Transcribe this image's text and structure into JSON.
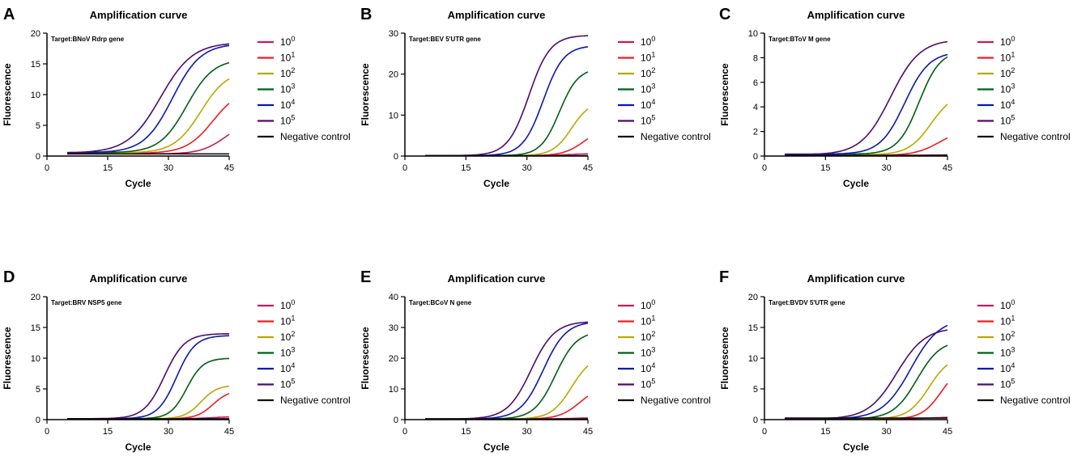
{
  "figure": {
    "panels": [
      "A",
      "B",
      "C",
      "D",
      "E",
      "F"
    ]
  },
  "legend_labels": [
    "10^0",
    "10^1",
    "10^2",
    "10^3",
    "10^4",
    "10^5",
    "Negative control"
  ],
  "chart_data": [
    {
      "panel": "A",
      "type": "line",
      "title": "Amplification curve",
      "target": "Target:BNoV Rdrp gene",
      "xlabel": "Cycle",
      "ylabel": "Fluorescence",
      "xlim": [
        0,
        45
      ],
      "ylim": [
        0,
        20
      ],
      "xticks": [
        0,
        15,
        30,
        45
      ],
      "yticks": [
        0,
        5,
        10,
        15,
        20
      ],
      "series": [
        {
          "name": "10^0",
          "color": "#c8195e",
          "plateau": 5.8,
          "midpoint": 44,
          "slope": 3.0,
          "baseline": 0.35
        },
        {
          "name": "10^1",
          "color": "#ee1c24",
          "plateau": 11.0,
          "midpoint": 41,
          "slope": 3.3,
          "baseline": 0.45
        },
        {
          "name": "10^2",
          "color": "#b8a800",
          "plateau": 14.0,
          "midpoint": 38,
          "slope": 3.3,
          "baseline": 0.5
        },
        {
          "name": "10^3",
          "color": "#005e14",
          "plateau": 15.8,
          "midpoint": 34.5,
          "slope": 3.3,
          "baseline": 0.55
        },
        {
          "name": "10^4",
          "color": "#0b17b4",
          "plateau": 18.3,
          "midpoint": 31,
          "slope": 3.5,
          "baseline": 0.55
        },
        {
          "name": "10^5",
          "color": "#4e0a6b",
          "plateau": 18.5,
          "midpoint": 28,
          "slope": 4.0,
          "baseline": 0.5
        },
        {
          "name": "Negative control",
          "color": "#111111",
          "plateau": 0,
          "midpoint": 30,
          "slope": 3,
          "baseline": 0.35
        }
      ]
    },
    {
      "panel": "B",
      "type": "line",
      "title": "Amplification curve",
      "target": "Target:BEV 5'UTR gene",
      "xlabel": "Cycle",
      "ylabel": "Fluorescence",
      "xlim": [
        0,
        45
      ],
      "ylim": [
        0,
        30
      ],
      "xticks": [
        0,
        15,
        30,
        45
      ],
      "yticks": [
        0,
        10,
        20,
        30
      ],
      "series": [
        {
          "name": "10^0",
          "color": "#c8195e",
          "plateau": 0.6,
          "midpoint": 40,
          "slope": 2.5,
          "baseline": 0.1
        },
        {
          "name": "10^1",
          "color": "#ee1c24",
          "plateau": 7.0,
          "midpoint": 44,
          "slope": 2.5,
          "baseline": 0.1
        },
        {
          "name": "10^2",
          "color": "#b8a800",
          "plateau": 13.5,
          "midpoint": 41,
          "slope": 2.3,
          "baseline": 0.1
        },
        {
          "name": "10^3",
          "color": "#005e14",
          "plateau": 21.5,
          "midpoint": 38,
          "slope": 2.3,
          "baseline": 0.1
        },
        {
          "name": "10^4",
          "color": "#0b17b4",
          "plateau": 27.0,
          "midpoint": 34,
          "slope": 2.5,
          "baseline": 0.1
        },
        {
          "name": "10^5",
          "color": "#4e0a6b",
          "plateau": 29.5,
          "midpoint": 30.5,
          "slope": 2.6,
          "baseline": 0.1
        },
        {
          "name": "Negative control",
          "color": "#111111",
          "plateau": 0,
          "midpoint": 30,
          "slope": 3,
          "baseline": 0.1
        }
      ]
    },
    {
      "panel": "C",
      "type": "line",
      "title": "Amplification curve",
      "target": "Target:BToV M gene",
      "xlabel": "Cycle",
      "ylabel": "Fluorescence",
      "xlim": [
        0,
        45
      ],
      "ylim": [
        0,
        10
      ],
      "xticks": [
        0,
        15,
        30,
        45
      ],
      "yticks": [
        0,
        2,
        4,
        6,
        8,
        10
      ],
      "series": [
        {
          "name": "10^0",
          "color": "#c8195e",
          "plateau": 0.1,
          "midpoint": 40,
          "slope": 3,
          "baseline": 0.05
        },
        {
          "name": "10^1",
          "color": "#ee1c24",
          "plateau": 2.2,
          "midpoint": 43,
          "slope": 3.0,
          "baseline": 0.05
        },
        {
          "name": "10^2",
          "color": "#b8a800",
          "plateau": 5.2,
          "midpoint": 41,
          "slope": 2.8,
          "baseline": 0.1
        },
        {
          "name": "10^3",
          "color": "#005e14",
          "plateau": 8.6,
          "midpoint": 38,
          "slope": 2.6,
          "baseline": 0.15
        },
        {
          "name": "10^4",
          "color": "#0b17b4",
          "plateau": 8.5,
          "midpoint": 34.5,
          "slope": 3.0,
          "baseline": 0.15
        },
        {
          "name": "10^5",
          "color": "#4e0a6b",
          "plateau": 9.5,
          "midpoint": 31,
          "slope": 3.6,
          "baseline": 0.1
        },
        {
          "name": "Negative control",
          "color": "#111111",
          "plateau": 0,
          "midpoint": 30,
          "slope": 3,
          "baseline": 0.05
        }
      ]
    },
    {
      "panel": "D",
      "type": "line",
      "title": "Amplification curve",
      "target": "Target:BRV NSP5 gene",
      "xlabel": "Cycle",
      "ylabel": "Fluorescence",
      "xlim": [
        0,
        45
      ],
      "ylim": [
        0,
        20
      ],
      "xticks": [
        0,
        15,
        30,
        45
      ],
      "yticks": [
        0,
        5,
        10,
        15,
        20
      ],
      "series": [
        {
          "name": "10^0",
          "color": "#c8195e",
          "plateau": 0.5,
          "midpoint": 41,
          "slope": 2.5,
          "baseline": 0.15
        },
        {
          "name": "10^1",
          "color": "#ee1c24",
          "plateau": 4.8,
          "midpoint": 41,
          "slope": 2.0,
          "baseline": 0.15
        },
        {
          "name": "10^2",
          "color": "#b8a800",
          "plateau": 5.6,
          "midpoint": 38,
          "slope": 2.0,
          "baseline": 0.15
        },
        {
          "name": "10^3",
          "color": "#005e14",
          "plateau": 10.0,
          "midpoint": 34.5,
          "slope": 2.0,
          "baseline": 0.15
        },
        {
          "name": "10^4",
          "color": "#0b17b4",
          "plateau": 13.7,
          "midpoint": 32,
          "slope": 2.3,
          "baseline": 0.15
        },
        {
          "name": "10^5",
          "color": "#4e0a6b",
          "plateau": 14.0,
          "midpoint": 29,
          "slope": 2.5,
          "baseline": 0.15
        },
        {
          "name": "Negative control",
          "color": "#111111",
          "plateau": 0,
          "midpoint": 30,
          "slope": 3,
          "baseline": 0.15
        }
      ]
    },
    {
      "panel": "E",
      "type": "line",
      "title": "Amplification curve",
      "target": "Target:BCoV N gene",
      "xlabel": "Cycle",
      "ylabel": "Fluorescence",
      "xlim": [
        0,
        45
      ],
      "ylim": [
        0,
        40
      ],
      "xticks": [
        0,
        15,
        30,
        45
      ],
      "yticks": [
        0,
        10,
        20,
        30,
        40
      ],
      "series": [
        {
          "name": "10^0",
          "color": "#c8195e",
          "plateau": 0.6,
          "midpoint": 41,
          "slope": 2.5,
          "baseline": 0.2
        },
        {
          "name": "10^1",
          "color": "#ee1c24",
          "plateau": 11.0,
          "midpoint": 43,
          "slope": 2.5,
          "baseline": 0.2
        },
        {
          "name": "10^2",
          "color": "#b8a800",
          "plateau": 21.0,
          "midpoint": 41,
          "slope": 2.5,
          "baseline": 0.2
        },
        {
          "name": "10^3",
          "color": "#005e14",
          "plateau": 28.8,
          "midpoint": 37,
          "slope": 2.6,
          "baseline": 0.2
        },
        {
          "name": "10^4",
          "color": "#0b17b4",
          "plateau": 32.0,
          "midpoint": 34,
          "slope": 2.8,
          "baseline": 0.2
        },
        {
          "name": "10^5",
          "color": "#4e0a6b",
          "plateau": 32.0,
          "midpoint": 31,
          "slope": 2.9,
          "baseline": 0.2
        },
        {
          "name": "Negative control",
          "color": "#111111",
          "plateau": 0,
          "midpoint": 30,
          "slope": 3,
          "baseline": 0.2
        }
      ]
    },
    {
      "panel": "F",
      "type": "line",
      "title": "Amplification curve",
      "target": "Target:BVDV 5'UTR gene",
      "xlabel": "Cycle",
      "ylabel": "Fluorescence",
      "xlim": [
        0,
        45
      ],
      "ylim": [
        0,
        20
      ],
      "xticks": [
        0,
        15,
        30,
        45
      ],
      "yticks": [
        0,
        5,
        10,
        15,
        20
      ],
      "series": [
        {
          "name": "10^0",
          "color": "#c8195e",
          "plateau": 0.4,
          "midpoint": 40,
          "slope": 2.5,
          "baseline": 0.1
        },
        {
          "name": "10^1",
          "color": "#ee1c24",
          "plateau": 9.0,
          "midpoint": 43.5,
          "slope": 2.4,
          "baseline": 0.1
        },
        {
          "name": "10^2",
          "color": "#b8a800",
          "plateau": 10.5,
          "midpoint": 40.5,
          "slope": 2.6,
          "baseline": 0.1
        },
        {
          "name": "10^3",
          "color": "#005e14",
          "plateau": 13.0,
          "midpoint": 37.5,
          "slope": 2.9,
          "baseline": 0.1
        },
        {
          "name": "10^4",
          "color": "#0b17b4",
          "plateau": 16.5,
          "midpoint": 36,
          "slope": 3.5,
          "baseline": 0.1
        },
        {
          "name": "10^5",
          "color": "#4e0a6b",
          "plateau": 15.0,
          "midpoint": 32.5,
          "slope": 3.5,
          "baseline": 0.1
        },
        {
          "name": "Negative control",
          "color": "#111111",
          "plateau": 0,
          "midpoint": 30,
          "slope": 3,
          "baseline": 0.25
        }
      ]
    }
  ]
}
